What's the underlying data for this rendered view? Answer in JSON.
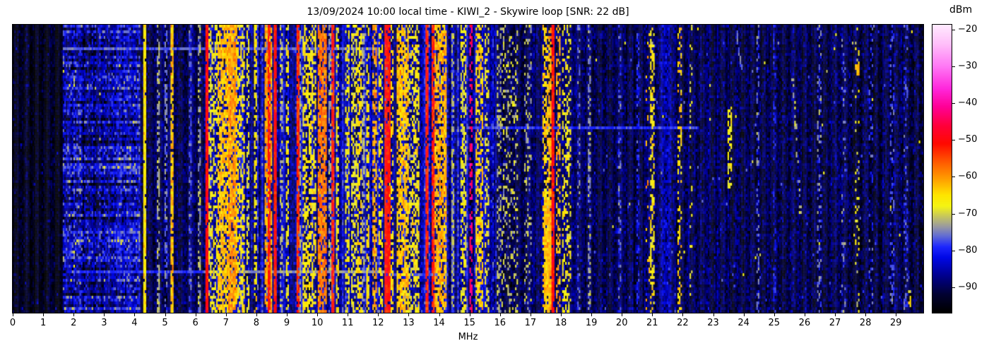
{
  "title": "13/09/2024 10:00 local time - KIWI_2 - Skywire loop [SNR: 22 dB]",
  "x_axis": {
    "label": "MHz",
    "min": 0,
    "max": 29.9,
    "ticks": [
      0,
      1,
      2,
      3,
      4,
      5,
      6,
      7,
      8,
      9,
      10,
      11,
      12,
      13,
      14,
      15,
      16,
      17,
      18,
      19,
      20,
      21,
      22,
      23,
      24,
      25,
      26,
      27,
      28,
      29
    ]
  },
  "colorbar": {
    "label": "dBm",
    "vmin": -96.9,
    "vmax": -18.7,
    "ticks": [
      -20,
      -30,
      -40,
      -50,
      -60,
      -70,
      -80,
      -90
    ]
  },
  "chart_data": {
    "type": "heatmap",
    "subtype": "spectrogram-waterfall",
    "x_unit": "MHz",
    "value_unit": "dBm",
    "x_range": [
      0,
      29.9
    ],
    "value_range": [
      -96.9,
      -18.7
    ],
    "grid": {
      "cols": 600,
      "rows": 102
    },
    "seed": 42,
    "colormap_stops": [
      [
        -96.9,
        "#000000"
      ],
      [
        -92,
        "#020232"
      ],
      [
        -87,
        "#00008c"
      ],
      [
        -82,
        "#0008e6"
      ],
      [
        -79,
        "#1e28ff"
      ],
      [
        -76,
        "#646ed2"
      ],
      [
        -73.5,
        "#9b9ba0"
      ],
      [
        -71,
        "#c3c364"
      ],
      [
        -68,
        "#f5f514"
      ],
      [
        -65,
        "#ffe600"
      ],
      [
        -61,
        "#ffa500"
      ],
      [
        -56,
        "#ff5a00"
      ],
      [
        -51,
        "#ff0a00"
      ],
      [
        -46,
        "#ff003c"
      ],
      [
        -41,
        "#ff0096"
      ],
      [
        -36,
        "#ff28dc"
      ],
      [
        -30,
        "#ff78f5"
      ],
      [
        -24,
        "#ffbefa"
      ],
      [
        -18.7,
        "#ffebff"
      ]
    ],
    "noise_regions": [
      {
        "f0": 0,
        "f1": 1.62,
        "base": -94,
        "sigma": 2.2,
        "speckle": 0.012,
        "sp_lv": -86
      },
      {
        "f0": 1.62,
        "f1": 2.25,
        "base": -84,
        "sigma": 4.5,
        "streak": 1
      },
      {
        "f0": 2.25,
        "f1": 3.3,
        "base": -86,
        "sigma": 4.2,
        "streak": 1
      },
      {
        "f0": 3.3,
        "f1": 4.18,
        "base": -83,
        "sigma": 3.8,
        "streak": 1
      },
      {
        "f0": 4.18,
        "f1": 6.3,
        "base": -90,
        "sigma": 2.8
      },
      {
        "f0": 6.3,
        "f1": 15.9,
        "base": -87,
        "sigma": 3.2,
        "colvar": 1
      },
      {
        "f0": 15.9,
        "f1": 19,
        "base": -89.5,
        "sigma": 2.8
      },
      {
        "f0": 19,
        "f1": 20.8,
        "base": -90,
        "sigma": 2.8,
        "speckle": 0.004,
        "sp_lv": -78,
        "rare": 1
      },
      {
        "f0": 20.8,
        "f1": 21.8,
        "base": -88.5,
        "sigma": 3.0,
        "speckle": 0.004,
        "sp_lv": -78,
        "rare": 1
      },
      {
        "f0": 21.8,
        "f1": 23,
        "base": -90,
        "sigma": 2.8,
        "speckle": 0.004,
        "sp_lv": -78,
        "rare": 1
      },
      {
        "f0": 23,
        "f1": 29.9,
        "base": -90.5,
        "sigma": 2.8,
        "speckle": 0.004,
        "sp_lv": -78,
        "rare": 1
      }
    ],
    "signal_bands": [
      {
        "f0": 4.31,
        "f1": 4.35,
        "lv": -66,
        "p": 0.95
      },
      {
        "f0": 4.75,
        "f1": 4.79,
        "lv": -73,
        "p": 0.5
      },
      {
        "f0": 5.0,
        "f1": 5.04,
        "lv": -76,
        "p": 0.5
      },
      {
        "f0": 5.2,
        "f1": 5.26,
        "lv": -63,
        "p": 0.85
      },
      {
        "f0": 5.83,
        "f1": 5.87,
        "lv": -77,
        "p": 0.45
      },
      {
        "f0": 6.1,
        "f1": 6.14,
        "lv": -73,
        "p": 0.45
      },
      {
        "f0": 6.33,
        "f1": 6.38,
        "lv": -50,
        "p": 0.97
      },
      {
        "f0": 6.47,
        "f1": 6.7,
        "lv": -68,
        "p": 0.5
      },
      {
        "f0": 6.75,
        "f1": 7.35,
        "lv": -63,
        "p": 0.75
      },
      {
        "f0": 7.1,
        "f1": 7.32,
        "lv": -60,
        "p": 0.65
      },
      {
        "f0": 7.38,
        "f1": 7.62,
        "lv": -66,
        "p": 0.55
      },
      {
        "f0": 7.72,
        "f1": 7.76,
        "lv": -69,
        "p": 0.5
      },
      {
        "f0": 7.97,
        "f1": 8.01,
        "lv": -66,
        "p": 0.6
      },
      {
        "f0": 8.28,
        "f1": 8.52,
        "lv": -61,
        "p": 0.75
      },
      {
        "f0": 8.4,
        "f1": 8.44,
        "lv": -52,
        "p": 0.9
      },
      {
        "f0": 8.58,
        "f1": 8.63,
        "lv": -51,
        "p": 0.95
      },
      {
        "f0": 8.82,
        "f1": 8.86,
        "lv": -72,
        "p": 0.5
      },
      {
        "f0": 9.0,
        "f1": 9.06,
        "lv": -67,
        "p": 0.5
      },
      {
        "f0": 9.33,
        "f1": 9.38,
        "lv": -53,
        "p": 0.85
      },
      {
        "f0": 9.42,
        "f1": 9.46,
        "lv": -73,
        "p": 0.6
      },
      {
        "f0": 9.55,
        "f1": 9.95,
        "lv": -66,
        "p": 0.55
      },
      {
        "f0": 10.02,
        "f1": 10.27,
        "lv": -58,
        "p": 0.8
      },
      {
        "f0": 10.4,
        "f1": 10.44,
        "lv": -73,
        "p": 0.6
      },
      {
        "f0": 10.5,
        "f1": 10.55,
        "lv": -52,
        "p": 0.9
      },
      {
        "f0": 10.62,
        "f1": 10.7,
        "lv": -67,
        "p": 0.5
      },
      {
        "f0": 10.95,
        "f1": 11.05,
        "lv": -67,
        "p": 0.45
      },
      {
        "f0": 11.12,
        "f1": 11.28,
        "lv": -68,
        "p": 0.5
      },
      {
        "f0": 11.33,
        "f1": 11.42,
        "lv": -65,
        "p": 0.6
      },
      {
        "f0": 11.5,
        "f1": 11.54,
        "lv": -73,
        "p": 0.6
      },
      {
        "f0": 11.62,
        "f1": 11.68,
        "lv": -65,
        "p": 0.6
      },
      {
        "f0": 11.82,
        "f1": 11.92,
        "lv": -61,
        "p": 0.55
      },
      {
        "f0": 12.05,
        "f1": 12.12,
        "lv": -66,
        "p": 0.45
      },
      {
        "f0": 12.23,
        "f1": 12.36,
        "lv": -51,
        "p": 0.9
      },
      {
        "f0": 12.4,
        "f1": 12.46,
        "lv": -65,
        "p": 0.5
      },
      {
        "f0": 12.62,
        "f1": 13.0,
        "lv": -63,
        "p": 0.75
      },
      {
        "f0": 13.05,
        "f1": 13.1,
        "lv": -70,
        "p": 0.45
      },
      {
        "f0": 13.15,
        "f1": 13.35,
        "lv": -66,
        "p": 0.55
      },
      {
        "f0": 13.58,
        "f1": 13.62,
        "lv": -52,
        "p": 0.9
      },
      {
        "f0": 13.77,
        "f1": 13.81,
        "lv": -52,
        "p": 0.85
      },
      {
        "f0": 13.88,
        "f1": 14.22,
        "lv": -62,
        "p": 0.7
      },
      {
        "f0": 14.43,
        "f1": 14.47,
        "lv": -72,
        "p": 0.5
      },
      {
        "f0": 14.72,
        "f1": 14.9,
        "lv": -68,
        "p": 0.5
      },
      {
        "f0": 15.0,
        "f1": 15.06,
        "lv": -43,
        "p": 0.5
      },
      {
        "f0": 15.22,
        "f1": 15.42,
        "lv": -64,
        "p": 0.6
      },
      {
        "f0": 15.52,
        "f1": 15.6,
        "lv": -68,
        "p": 0.4
      },
      {
        "f0": 15.93,
        "f1": 16.03,
        "lv": -72,
        "p": 0.3
      },
      {
        "f0": 16.08,
        "f1": 16.58,
        "lv": -71,
        "p": 0.22
      },
      {
        "f0": 16.83,
        "f1": 17.03,
        "lv": -72,
        "p": 0.22
      },
      {
        "f0": 17.42,
        "f1": 17.58,
        "lv": -64,
        "p": 0.55
      },
      {
        "f0": 17.6,
        "f1": 17.68,
        "lv": -62,
        "p": 0.6
      },
      {
        "f0": 17.7,
        "f1": 17.75,
        "lv": -51,
        "p": 0.9
      },
      {
        "f0": 17.86,
        "f1": 17.96,
        "lv": -62,
        "p": 0.45
      },
      {
        "f0": 18.08,
        "f1": 18.33,
        "lv": -67,
        "p": 0.35
      },
      {
        "f0": 18.55,
        "f1": 18.6,
        "lv": -76,
        "p": 0.3
      },
      {
        "f0": 18.93,
        "f1": 18.98,
        "lv": -74,
        "p": 0.45
      },
      {
        "f0": 19.93,
        "f1": 19.98,
        "lv": -77,
        "p": 0.4
      },
      {
        "f0": 20.53,
        "f1": 20.57,
        "lv": -80,
        "p": 0.5
      },
      {
        "f0": 20.82,
        "f1": 20.9,
        "lv": -62,
        "p": 0.12
      },
      {
        "f0": 20.97,
        "f1": 21.03,
        "lv": -66,
        "p": 0.5
      },
      {
        "f0": 21.3,
        "f1": 21.6,
        "lv": -84,
        "p": 0.6
      },
      {
        "f0": 21.86,
        "f1": 21.94,
        "lv": -64,
        "p": 0.28
      },
      {
        "f0": 22.25,
        "f1": 22.32,
        "lv": -68,
        "p": 0.2
      },
      {
        "f0": 24.45,
        "f1": 24.5,
        "lv": -76,
        "p": 0.3
      },
      {
        "f0": 25.0,
        "f1": 25.05,
        "lv": -80,
        "p": 0.3
      },
      {
        "f0": 26.42,
        "f1": 26.52,
        "lv": -76,
        "p": 0.25
      },
      {
        "f0": 27.25,
        "f1": 27.35,
        "lv": -76,
        "p": 0.18
      },
      {
        "f0": 27.7,
        "f1": 27.8,
        "lv": -68,
        "p": 0.15
      },
      {
        "f0": 28.15,
        "f1": 28.25,
        "lv": -78,
        "p": 0.2
      },
      {
        "f0": 28.85,
        "f1": 28.92,
        "lv": -77,
        "p": 0.3
      },
      {
        "f0": 29.3,
        "f1": 29.36,
        "lv": -78,
        "p": 0.25
      }
    ],
    "horizontal_events": [
      {
        "y": 0.075,
        "f0": 1.62,
        "f1": 12.0,
        "lv": -77
      },
      {
        "y": 0.35,
        "f0": 14.9,
        "f1": 22.5,
        "lv": -79
      },
      {
        "y": 0.853,
        "f0": 6.3,
        "f1": 12.3,
        "lv": -74
      },
      {
        "y": 0.853,
        "f0": 1.9,
        "f1": 6.3,
        "lv": -79
      },
      {
        "y": 0.862,
        "f0": 12.3,
        "f1": 14.3,
        "lv": -77
      }
    ],
    "features": [
      {
        "type": "rect",
        "f0": 17.46,
        "f1": 17.68,
        "y0": 0.6,
        "y1": 0.99,
        "lv": -63,
        "p": 0.85
      },
      {
        "type": "rect",
        "f0": 23.52,
        "f1": 23.58,
        "y0": 0.28,
        "y1": 0.57,
        "lv": -67,
        "p": 0.5
      },
      {
        "type": "rect",
        "f0": 27.7,
        "f1": 27.78,
        "y0": 0.13,
        "y1": 0.17,
        "lv": -62,
        "p": 0.9
      },
      {
        "type": "rect",
        "f0": 29.43,
        "f1": 29.5,
        "y0": 0.92,
        "y1": 1.0,
        "lv": -66,
        "p": 0.35
      },
      {
        "type": "diagonal",
        "fa": 23.75,
        "fb": 23.95,
        "y0": 0.01,
        "y1": 0.16,
        "lv": -76,
        "p": 0.5
      },
      {
        "type": "diagonal",
        "fa": 25.62,
        "fb": 25.88,
        "y0": 0.18,
        "y1": 0.66,
        "lv": -72,
        "p": 0.4
      }
    ]
  }
}
